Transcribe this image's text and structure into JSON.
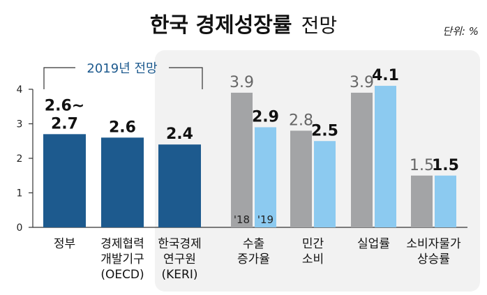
{
  "chart_data": {
    "type": "bar",
    "title": "한국 경제성장률",
    "title_suffix": "전망",
    "unit_label": "단위: %",
    "ylim": [
      0,
      4
    ],
    "y_ticks": [
      "0",
      "1",
      "2",
      "3",
      "4"
    ],
    "grid": false,
    "legend": "bar-labels",
    "bracket_label": "2019년 전망",
    "year_labels": [
      "'18",
      "'19"
    ],
    "colors": {
      "forecast": "#1d5a8e",
      "year_2018": "#a3a4a6",
      "year_2019": "#8ccaf0",
      "panel": "#f2f2f2",
      "bracket": "#1d5a8e"
    },
    "forecasts": [
      {
        "category": [
          "정부"
        ],
        "value": 2.7,
        "label": [
          "2.6~",
          "2.7"
        ]
      },
      {
        "category": [
          "경제협력",
          "개발기구",
          "(OECD)"
        ],
        "value": 2.6,
        "label": [
          "2.6"
        ]
      },
      {
        "category": [
          "한국경제",
          "연구원",
          "(KERI)"
        ],
        "value": 2.4,
        "label": [
          "2.4"
        ]
      }
    ],
    "groups": [
      {
        "category": [
          "수출",
          "증가율"
        ],
        "v2018": 3.9,
        "v2019": 2.9,
        "label2018": "3.9",
        "label2019": "2.9"
      },
      {
        "category": [
          "민간",
          "소비"
        ],
        "v2018": 2.8,
        "v2019": 2.5,
        "label2018": "2.8",
        "label2019": "2.5"
      },
      {
        "category": [
          "실업률"
        ],
        "v2018": 3.9,
        "v2019": 4.1,
        "label2018": "3.9",
        "label2019": "4.1"
      },
      {
        "category": [
          "소비자물가",
          "상승률"
        ],
        "v2018": 1.5,
        "v2019": 1.5,
        "label2018": "1.5",
        "label2019": "1.5"
      }
    ]
  }
}
